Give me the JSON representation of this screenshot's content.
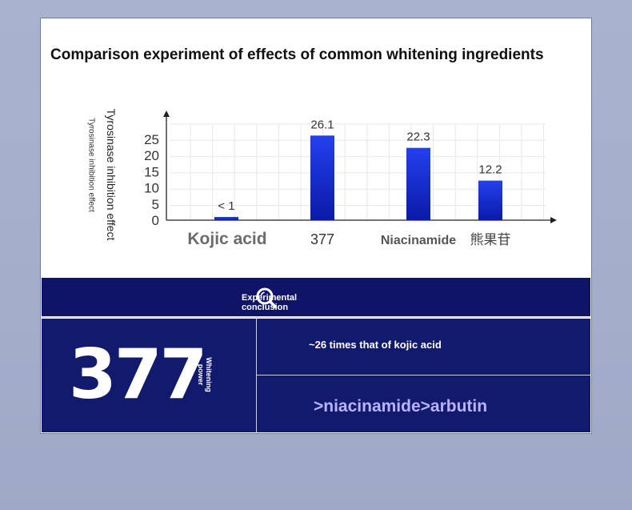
{
  "chart_data": {
    "type": "bar",
    "title": "Comparison experiment of effects of common whitening ingredients",
    "ylabel": "Tyrosinase inhibition effect",
    "ylabel_secondary": "Tyrosinase inhibition effect",
    "categories": [
      "Kojic acid",
      "377",
      "Niacinamide",
      "熊果苷"
    ],
    "values": [
      1,
      26.1,
      22.3,
      12.2
    ],
    "data_labels": [
      "< 1",
      "26.1",
      "22.3",
      "12.2"
    ],
    "yticks": [
      0,
      5,
      10,
      15,
      20,
      25
    ],
    "ylim": [
      0,
      33
    ],
    "grid": true,
    "bar_color": "#1a2fd6"
  },
  "conclusion": {
    "header": "Experimental conclusion",
    "icon": "magnifier-icon",
    "big_number": "377",
    "big_number_caption": "Whitening power",
    "ratio_text": "~26 times that of kojic acid",
    "ranking_text": ">niacinamide>arbutin"
  },
  "colors": {
    "panel": "#121a6e",
    "band": "#0f1466",
    "ranking": "#b9b2ff"
  }
}
